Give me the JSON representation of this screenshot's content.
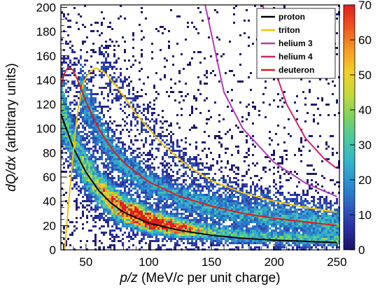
{
  "chart_data": {
    "type": "heatmap",
    "title": "",
    "xlabel_parts": [
      "p/z",
      " (MeV/",
      "c",
      " per unit charge)"
    ],
    "ylabel_parts": [
      "dQ/dx",
      " (arbitrary units)"
    ],
    "xlim": [
      30,
      252
    ],
    "ylim": [
      0,
      202
    ],
    "xticks": [
      50,
      100,
      150,
      200,
      250
    ],
    "yticks": [
      0,
      20,
      40,
      60,
      80,
      100,
      120,
      140,
      160,
      180,
      200
    ],
    "colorbar": {
      "range": [
        0,
        70
      ],
      "ticks": [
        0,
        10,
        20,
        30,
        40,
        50,
        60,
        70
      ],
      "colors": [
        "#1a1466",
        "#2a2fa0",
        "#2f5fbf",
        "#2c8ed0",
        "#34b6c8",
        "#4cc8a0",
        "#7ed35e",
        "#c6d93a",
        "#f2cf2a",
        "#f59a24",
        "#ee5522",
        "#e01e1e"
      ]
    },
    "legend": {
      "placement": "top-right",
      "entries": [
        {
          "label": "proton",
          "color": "#000000"
        },
        {
          "label": "triton",
          "color": "#f2c200"
        },
        {
          "label": "helium 3",
          "color": "#b03bb8"
        },
        {
          "label": "helium 4",
          "color": "#d2246a"
        },
        {
          "label": "deuteron",
          "color": "#e01b1b"
        }
      ]
    },
    "series": [
      {
        "name": "proton",
        "color": "#000000",
        "x": [
          30,
          40,
          50,
          60,
          70,
          80,
          100,
          125,
          150,
          175,
          200,
          225,
          250
        ],
        "y": [
          112,
          84,
          64,
          49,
          38.5,
          31,
          22,
          16,
          12,
          9.5,
          8,
          7,
          6
        ]
      },
      {
        "name": "triton",
        "color": "#f2c200",
        "x": [
          33,
          38,
          43,
          48,
          53,
          58,
          65,
          75,
          90,
          110,
          130,
          150,
          175,
          200,
          225,
          250
        ],
        "y": [
          0,
          60,
          112,
          138,
          147,
          150,
          146,
          134,
          112,
          88,
          70,
          57,
          47,
          40,
          35,
          31
        ]
      },
      {
        "name": "helium 3",
        "color": "#b03bb8",
        "x": [
          145,
          160,
          175,
          200,
          225,
          250
        ],
        "y": [
          202,
          130,
          100,
          72,
          55,
          44
        ]
      },
      {
        "name": "helium 4",
        "color": "#d2246a",
        "x": [
          191,
          200,
          210,
          225,
          240,
          250
        ],
        "y": [
          202,
          150,
          120,
          92,
          75,
          67
        ]
      },
      {
        "name": "deuteron",
        "color": "#e01b1b",
        "x": [
          30,
          33,
          36,
          40,
          45,
          50,
          60,
          70,
          80,
          100,
          125,
          150,
          175,
          200,
          225,
          250
        ],
        "y": [
          135,
          146,
          151,
          148,
          136,
          122,
          100,
          84,
          72,
          56,
          44,
          36,
          30,
          26,
          23,
          20
        ]
      }
    ]
  }
}
